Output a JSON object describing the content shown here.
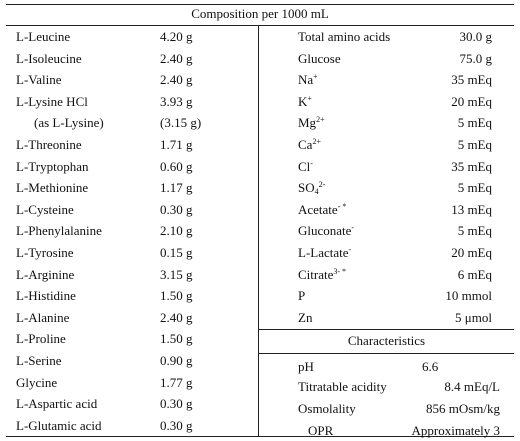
{
  "table": {
    "header": "Composition per 1000 mL",
    "left_rows": [
      {
        "name": "L-Leucine",
        "value": "4.20 g"
      },
      {
        "name": "L-Isoleucine",
        "value": "2.40 g"
      },
      {
        "name": "L-Valine",
        "value": "2.40 g"
      },
      {
        "name": "L-Lysine HCl",
        "value": "3.93 g"
      },
      {
        "name": "(as L-Lysine)",
        "value": "(3.15 g)"
      },
      {
        "name": "L-Threonine",
        "value": "1.71 g"
      },
      {
        "name": "L-Tryptophan",
        "value": "0.60 g"
      },
      {
        "name": "L-Methionine",
        "value": "1.17 g"
      },
      {
        "name": "L-Cysteine",
        "value": "0.30 g"
      },
      {
        "name": "L-Phenylalanine",
        "value": "2.10 g"
      },
      {
        "name": "L-Tyrosine",
        "value": "0.15 g"
      },
      {
        "name": "L-Arginine",
        "value": "3.15 g"
      },
      {
        "name": "L-Histidine",
        "value": "1.50 g"
      },
      {
        "name": "L-Alanine",
        "value": "2.40 g"
      },
      {
        "name": "L-Proline",
        "value": "1.50 g"
      },
      {
        "name": "L-Serine",
        "value": "0.90 g"
      },
      {
        "name": "Glycine",
        "value": "1.77 g"
      },
      {
        "name": "L-Aspartic acid",
        "value": "0.30 g"
      },
      {
        "name": "L-Glutamic acid",
        "value": "0.30 g"
      }
    ],
    "composition_rows": [
      {
        "name": "Total amino acids",
        "sup": "",
        "sub": "",
        "value": "30.0 g"
      },
      {
        "name": "Glucose",
        "sup": "",
        "sub": "",
        "value": "75.0 g"
      },
      {
        "name": "Na",
        "sup": "+",
        "sub": "",
        "value": "35 mEq"
      },
      {
        "name": "K",
        "sup": "+",
        "sub": "",
        "value": "20 mEq"
      },
      {
        "name": "Mg",
        "sup": "2+",
        "sub": "",
        "value": "5 mEq"
      },
      {
        "name": "Ca",
        "sup": "2+",
        "sub": "",
        "value": "5 mEq"
      },
      {
        "name": "Cl",
        "sup": "-",
        "sub": "",
        "value": "35 mEq"
      },
      {
        "name": "SO",
        "sup": "2-",
        "sub": "4",
        "value": "5 mEq"
      },
      {
        "name": "Acetate",
        "sup": "- *",
        "sub": "",
        "value": "13 mEq"
      },
      {
        "name": "Gluconate",
        "sup": "-",
        "sub": "",
        "value": "5 mEq"
      },
      {
        "name": "L-Lactate",
        "sup": "-",
        "sub": "",
        "value": "20 mEq"
      },
      {
        "name": "Citrate",
        "sup": "3- *",
        "sub": "",
        "value": "6 mEq"
      },
      {
        "name": "P",
        "sup": "",
        "sub": "",
        "value": "10 mmol"
      },
      {
        "name": "Zn",
        "sup": "",
        "sub": "",
        "value": "5 μmol"
      }
    ],
    "characteristics_header": "Characteristics",
    "characteristics_rows": [
      {
        "name": "pH",
        "value": "6.6"
      },
      {
        "name": "Titratable acidity",
        "value": "8.4 mEq/L"
      },
      {
        "name": "Osmolality",
        "value": "856 mOsm/kg"
      },
      {
        "name": "OPR",
        "value": "Approximately 3"
      }
    ]
  }
}
